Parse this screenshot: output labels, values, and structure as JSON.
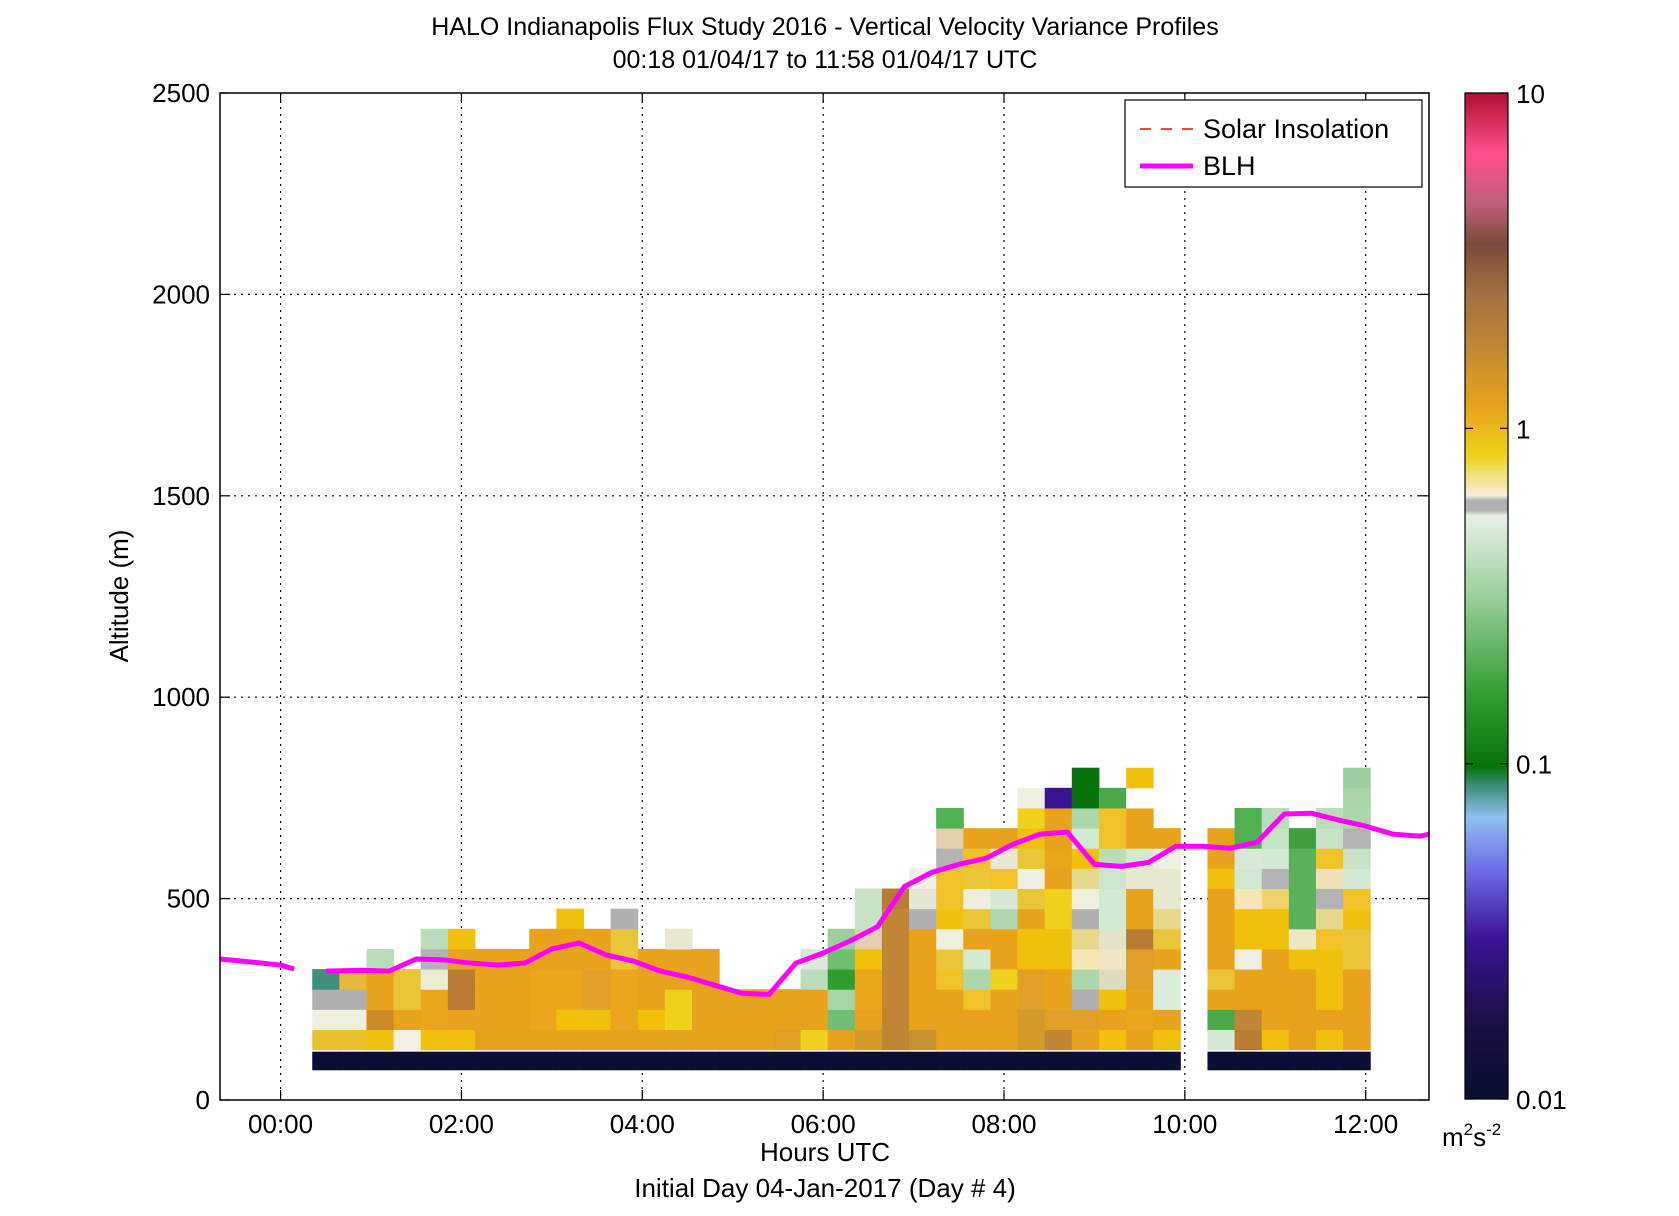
{
  "figure": {
    "title": "HALO Indianapolis Flux Study 2016 - Vertical Velocity Variance Profiles",
    "subtitle": "00:18 01/04/17 to 11:58 01/04/17  UTC",
    "xlabel": "Hours UTC",
    "footer": "Initial Day 04-Jan-2017 (Day # 4)",
    "ylabel": "Altitude (m)"
  },
  "legend": {
    "items": [
      {
        "label": "Solar Insolation",
        "color": "#ff0000",
        "style": "dashed"
      },
      {
        "label": "BLH",
        "color": "#ff00ff",
        "style": "solid"
      }
    ],
    "placement": "top-right"
  },
  "colorbar": {
    "ticks": [
      "10",
      "1",
      "0.1",
      "0.01"
    ],
    "tick_values": [
      10,
      1,
      0.1,
      0.01
    ],
    "unit_base": "m",
    "unit_exp1": "2",
    "unit_s": "s",
    "unit_exp2": "-2",
    "scale": "log"
  },
  "chart_data": {
    "type": "heatmap",
    "xlim_hours": [
      -0.67,
      12.7
    ],
    "ylim": [
      0,
      2500
    ],
    "xticks": [
      "00:00",
      "02:00",
      "04:00",
      "06:00",
      "08:00",
      "10:00",
      "12:00"
    ],
    "xtick_hours": [
      0,
      2,
      4,
      6,
      8,
      10,
      12
    ],
    "yticks": [
      "0",
      "500",
      "1000",
      "1500",
      "2000",
      "2500"
    ],
    "ytick_values": [
      0,
      500,
      1000,
      1500,
      2000,
      2500
    ],
    "grid": true,
    "columns": [
      {
        "t": 0.5,
        "top": 375,
        "c": [
          "#0a0f33",
          "#e8c22c",
          "#f0efdf",
          "#b0b0b0",
          "#3f8f7e"
        ]
      },
      {
        "t": 0.8,
        "top": 285,
        "c": [
          "#0a0f33",
          "#e8c22c",
          "#f0efdf",
          "#b0b0b0",
          "#e6b93a"
        ]
      },
      {
        "t": 1.1,
        "top": 375,
        "c": [
          "#0a0f33",
          "#efc10c",
          "#cc8a26",
          "#e8a21c",
          "#e8a21c",
          "#b9ddb9"
        ]
      },
      {
        "t": 1.4,
        "top": 325,
        "c": [
          "#0a0f33",
          "#f3efe2",
          "#e8a21c",
          "#eac538",
          "#eac538"
        ]
      },
      {
        "t": 1.7,
        "top": 375,
        "c": [
          "#0a0f33",
          "#efc10c",
          "#eaa61c",
          "#eaa61c",
          "#ececd4",
          "#b3b3b3",
          "#b9ddb9"
        ]
      },
      {
        "t": 2.0,
        "top": 375,
        "c": [
          "#0a0f33",
          "#efc10c",
          "#e8a21c",
          "#b97a33",
          "#b97a33",
          "#e8a21c",
          "#efc10c"
        ]
      },
      {
        "t": 2.3,
        "top": 325,
        "c": [
          "#0a0f33",
          "#e8a21c",
          "#e8a21c",
          "#e8a21c",
          "#e8a21c",
          "#e8a21c"
        ]
      },
      {
        "t": 2.6,
        "top": 325,
        "c": [
          "#0a0f33",
          "#e8a21c",
          "#e8a21c",
          "#e8a21c",
          "#e8a21c",
          "#e8a21c"
        ]
      },
      {
        "t": 2.9,
        "top": 375,
        "c": [
          "#0a0f33",
          "#e8a21c",
          "#eaa61c",
          "#eaa61c",
          "#eaa61c",
          "#e8a21c",
          "#e8a21c"
        ]
      },
      {
        "t": 3.2,
        "top": 425,
        "c": [
          "#0a0f33",
          "#e8a21c",
          "#efc10c",
          "#eaa61c",
          "#eaa61c",
          "#e8a21c",
          "#e8a21c",
          "#efc10c"
        ]
      },
      {
        "t": 3.5,
        "top": 375,
        "c": [
          "#0a0f33",
          "#e8a21c",
          "#efc10c",
          "#e0a028",
          "#e0a028",
          "#e8a21c",
          "#e8a21c"
        ]
      },
      {
        "t": 3.8,
        "top": 425,
        "c": [
          "#0a0f33",
          "#e8a21c",
          "#eaa61c",
          "#eaa61c",
          "#eaa61c",
          "#eac538",
          "#eac538",
          "#b0b0b0"
        ]
      },
      {
        "t": 4.1,
        "top": 325,
        "c": [
          "#0a0f33",
          "#e8a21c",
          "#efc10c",
          "#e8a21c",
          "#e8a21c",
          "#e8a21c"
        ]
      },
      {
        "t": 4.4,
        "top": 375,
        "c": [
          "#0a0f33",
          "#e8a21c",
          "#efd01a",
          "#efd01a",
          "#e8a21c",
          "#e8a21c",
          "#e8e8cf"
        ]
      },
      {
        "t": 4.7,
        "top": 325,
        "c": [
          "#0a0f33",
          "#e8a21c",
          "#e8a21c",
          "#e8a21c",
          "#e8a21c",
          "#e8a21c"
        ]
      },
      {
        "t": 5.0,
        "top": 225,
        "c": [
          "#0a0f33",
          "#e8a21c",
          "#e8a21c",
          "#e8a21c"
        ]
      },
      {
        "t": 5.3,
        "top": 225,
        "c": [
          "#0a0f33",
          "#e8a21c",
          "#e8a21c",
          "#e8a21c"
        ]
      },
      {
        "t": 5.6,
        "top": 225,
        "c": [
          "#0a0f33",
          "#e0a028",
          "#e8a21c",
          "#e8a21c"
        ]
      },
      {
        "t": 5.9,
        "top": 325,
        "c": [
          "#0a0f33",
          "#efd01a",
          "#e8a21c",
          "#e8a21c",
          "#b9ddb9",
          "#dce9dc"
        ]
      },
      {
        "t": 6.2,
        "top": 375,
        "c": [
          "#0a0f33",
          "#e8a21c",
          "#70be70",
          "#a6d4a6",
          "#2f9d2f",
          "#70be70",
          "#9ccf9c"
        ]
      },
      {
        "t": 6.5,
        "top": 475,
        "c": [
          "#0a0f33",
          "#d39a29",
          "#e8a21c",
          "#eaa61c",
          "#eaa61c",
          "#efc10c",
          "#e3cfae",
          "#c7e2c7",
          "#c7e2c7"
        ]
      },
      {
        "t": 6.8,
        "top": 475,
        "c": [
          "#0a0f33",
          "#c08635",
          "#c08635",
          "#c08635",
          "#c08635",
          "#c08635",
          "#c08635",
          "#c08635",
          "#b97a33"
        ]
      },
      {
        "t": 7.1,
        "top": 525,
        "c": [
          "#0a0f33",
          "#c8932f",
          "#e8a21c",
          "#e8a21c",
          "#e8a21c",
          "#e8a21c",
          "#e8a21c",
          "#b0b0b0",
          "#e5e6d5",
          "#f3efe2"
        ]
      },
      {
        "t": 7.4,
        "top": 675,
        "c": [
          "#0a0f33",
          "#e8a21c",
          "#e8a21c",
          "#e8a21c",
          "#f0c228",
          "#eac538",
          "#efefe0",
          "#efc10c",
          "#f0c228",
          "#f0c228",
          "#b3b3b3",
          "#e3cfae",
          "#51b051"
        ]
      },
      {
        "t": 7.7,
        "top": 625,
        "c": [
          "#0a0f33",
          "#e8a21c",
          "#e8a21c",
          "#f0c228",
          "#acd6ac",
          "#d2e9d2",
          "#e8a21c",
          "#eac538",
          "#eeeedc",
          "#eac538",
          "#f0c228",
          "#e8a21c"
        ]
      },
      {
        "t": 8.0,
        "top": 625,
        "c": [
          "#0a0f33",
          "#e8a21c",
          "#e8a21c",
          "#e8a21c",
          "#efd01a",
          "#e8a21c",
          "#e8a21c",
          "#b0d8b0",
          "#d5e8d5",
          "#f0c228",
          "#e8e8cf",
          "#e8a21c"
        ]
      },
      {
        "t": 8.3,
        "top": 725,
        "c": [
          "#0a0f33",
          "#d39a29",
          "#d39a29",
          "#e0a028",
          "#e0a028",
          "#efc10c",
          "#efc10c",
          "#e8a21c",
          "#eac538",
          "#f0efdf",
          "#eac538",
          "#efc10c",
          "#efd01a",
          "#f0efdf"
        ]
      },
      {
        "t": 8.6,
        "top": 725,
        "c": [
          "#0a0f33",
          "#c08635",
          "#e0a028",
          "#e8a21c",
          "#e8a21c",
          "#efc10c",
          "#efc10c",
          "#efd01a",
          "#efd01a",
          "#e8a21c",
          "#eaa61c",
          "#e8a21c",
          "#e8a21c",
          "#3b1496"
        ]
      },
      {
        "t": 8.9,
        "top": 875,
        "c": [
          "#0a0f33",
          "#e8a21c",
          "#e0a028",
          "#b0b0b0",
          "#acd6ac",
          "#f5e7b5",
          "#e6d88b",
          "#b0b0b0",
          "#efefe0",
          "#e6d88b",
          "#efc10c",
          "#d2e9d2",
          "#acd6ac",
          "#07740b",
          "#07740b"
        ]
      },
      {
        "t": 9.2,
        "top": 725,
        "c": [
          "#0a0f33",
          "#efc10c",
          "#e8a21c",
          "#efc10c",
          "#dcdcbc",
          "#efe6c3",
          "#e2e2ca",
          "#d2e9d2",
          "#d2e9d2",
          "#cfe4cf",
          "#b9ddb9",
          "#f0c228",
          "#f0c228",
          "#4aa74a"
        ]
      },
      {
        "t": 9.5,
        "top": 775,
        "c": [
          "#0a0f33",
          "#e8a21c",
          "#eaa61c",
          "#e8a21c",
          "#e0a028",
          "#e0a028",
          "#b97a33",
          "#e8a21c",
          "#e8a21c",
          "#e8e8cf",
          "#d2e9d2",
          "#e8a21c",
          "#e8a21c",
          "#ffffff",
          "#efc10c"
        ]
      },
      {
        "t": 9.8,
        "top": 625,
        "c": [
          "#0a0f33",
          "#efc10c",
          "#e8a21c",
          "#dcecdc",
          "#dcecdc",
          "#e8a21c",
          "#eac538",
          "#e6d88b",
          "#e8e8cf",
          "#e8e8cf",
          "#efefe0",
          "#e8a21c"
        ]
      },
      {
        "t": 10.4,
        "top": 625,
        "c": [
          "#0a0f33",
          "#d5e8d5",
          "#4aa74a",
          "#e8a21c",
          "#eac538",
          "#e8a21c",
          "#e8a21c",
          "#e8a21c",
          "#e8a21c",
          "#efc10c",
          "#e8a21c",
          "#e8a21c"
        ]
      },
      {
        "t": 10.7,
        "top": 675,
        "c": [
          "#0a0f33",
          "#b97a33",
          "#c08635",
          "#e8a21c",
          "#e8a21c",
          "#efefe0",
          "#efc10c",
          "#efc10c",
          "#f5e7b5",
          "#d0e6d0",
          "#d8e9d8",
          "#51b051",
          "#51b051"
        ]
      },
      {
        "t": 11.0,
        "top": 675,
        "c": [
          "#0a0f33",
          "#efc10c",
          "#e8a21c",
          "#e8a21c",
          "#e8a21c",
          "#e8a21c",
          "#efc10c",
          "#efc10c",
          "#f0d36a",
          "#b3b3b3",
          "#d2e9d2",
          "#c7e2c7",
          "#b9ddb9"
        ]
      },
      {
        "t": 11.3,
        "top": 625,
        "c": [
          "#0a0f33",
          "#e8a21c",
          "#e8a21c",
          "#e8a21c",
          "#e8a21c",
          "#efc10c",
          "#efe6c3",
          "#5cb25c",
          "#5cb25c",
          "#5cb25c",
          "#5cb25c",
          "#3f9f3f"
        ]
      },
      {
        "t": 11.6,
        "top": 675,
        "c": [
          "#0a0f33",
          "#efc10c",
          "#e8a21c",
          "#efc10c",
          "#efc10c",
          "#efc10c",
          "#f0c228",
          "#e6d88b",
          "#b3b3b3",
          "#f0e0b8",
          "#f0c228",
          "#c7e2c7",
          "#b9ddb9"
        ]
      },
      {
        "t": 11.9,
        "top": 775,
        "c": [
          "#0a0f33",
          "#e8a21c",
          "#e8a21c",
          "#e8a21c",
          "#e8a21c",
          "#eac538",
          "#eac538",
          "#efc10c",
          "#f0c228",
          "#d5e8d5",
          "#c7e2c7",
          "#b3b3b3",
          "#acd6ac",
          "#a6d4a6",
          "#9ccf9c"
        ]
      }
    ],
    "blh_series": {
      "name": "BLH",
      "segments": [
        {
          "x": [
            -0.67,
            -0.3,
            0.0,
            0.15
          ],
          "y": [
            350,
            342,
            335,
            325
          ]
        },
        {
          "x": [
            0.5,
            0.9,
            1.2,
            1.5,
            1.8,
            2.1,
            2.4,
            2.7,
            3.0,
            3.3,
            3.6,
            3.9,
            4.2,
            4.5,
            4.8,
            5.1,
            5.4,
            5.7,
            6.0,
            6.3,
            6.6,
            6.9,
            7.2,
            7.5,
            7.8,
            8.1,
            8.4,
            8.7,
            9.0,
            9.3,
            9.6,
            9.9,
            10.2,
            10.5,
            10.8,
            11.1,
            11.4,
            11.7,
            12.0,
            12.3,
            12.6,
            12.7
          ],
          "y": [
            320,
            322,
            320,
            350,
            348,
            340,
            335,
            340,
            375,
            390,
            360,
            345,
            320,
            305,
            285,
            265,
            262,
            340,
            365,
            395,
            430,
            530,
            565,
            585,
            600,
            635,
            660,
            665,
            585,
            580,
            590,
            630,
            630,
            625,
            640,
            710,
            712,
            695,
            680,
            660,
            655,
            660
          ]
        }
      ]
    }
  }
}
